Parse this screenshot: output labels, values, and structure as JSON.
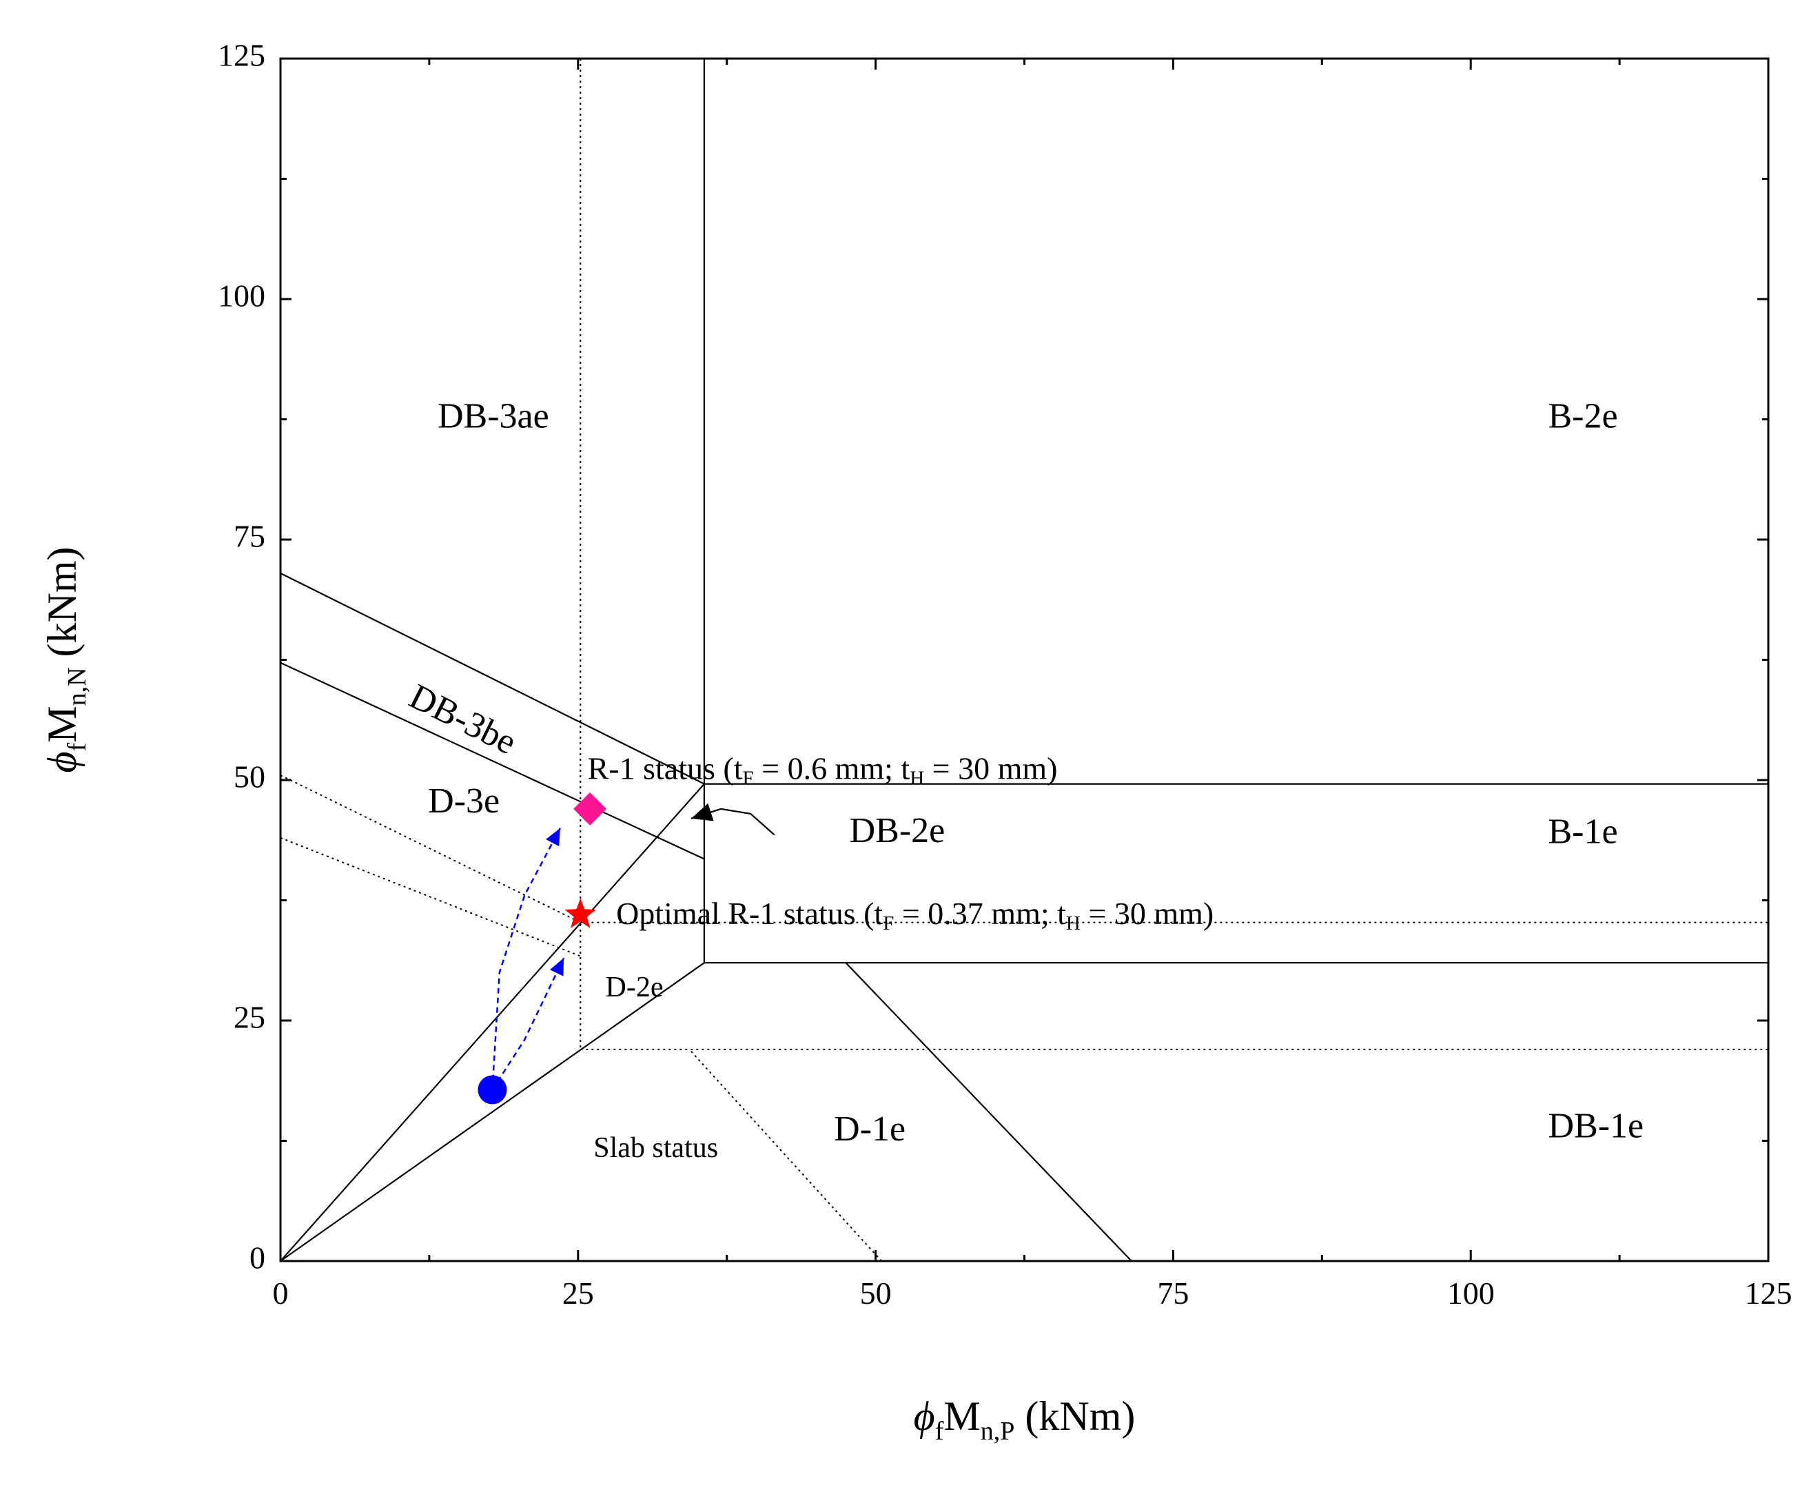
{
  "chart_data": {
    "type": "scatter",
    "xlabel": {
      "prefix": "ϕ",
      "sub1": "f",
      "main": "M",
      "sub2": "n,P",
      "suffix": " (kNm)"
    },
    "ylabel": {
      "prefix": "ϕ",
      "sub1": "f",
      "main": "M",
      "sub2": "n,N",
      "suffix": " (kNm)"
    },
    "xlim": [
      0,
      125
    ],
    "ylim": [
      0,
      125
    ],
    "xticks": [
      0,
      25,
      50,
      75,
      100,
      125
    ],
    "yticks": [
      0,
      25,
      50,
      75,
      100,
      125
    ],
    "xtick_labels": [
      "0",
      "25",
      "50",
      "75",
      "100",
      "125"
    ],
    "ytick_labels": [
      "0",
      "25",
      "50",
      "75",
      "100",
      "125"
    ],
    "minor_step": 12.5,
    "grid": false,
    "boundaries_solid": [
      {
        "name": "boundary-diag-upper",
        "points": [
          [
            0,
            0
          ],
          [
            35.6,
            49.6
          ]
        ]
      },
      {
        "name": "boundary-diag-lower",
        "points": [
          [
            0,
            0
          ],
          [
            35.6,
            31
          ]
        ]
      },
      {
        "name": "boundary-vertical",
        "points": [
          [
            35.6,
            125
          ],
          [
            35.6,
            31
          ]
        ]
      },
      {
        "name": "boundary-horizontal-top",
        "points": [
          [
            35.6,
            49.6
          ],
          [
            125,
            49.6
          ]
        ]
      },
      {
        "name": "boundary-horizontal-bottom",
        "points": [
          [
            35.6,
            31
          ],
          [
            125,
            31
          ]
        ]
      },
      {
        "name": "boundary-diag-db1e",
        "points": [
          [
            47.5,
            31
          ],
          [
            71.5,
            0
          ]
        ]
      },
      {
        "name": "boundary-db3-top",
        "points": [
          [
            0,
            71.5
          ],
          [
            35.6,
            49.6
          ]
        ]
      },
      {
        "name": "boundary-db3-bottom",
        "points": [
          [
            0,
            62.2
          ],
          [
            35.6,
            41.8
          ]
        ]
      }
    ],
    "boundaries_dotted": [
      {
        "name": "dotted-vertical-25",
        "points": [
          [
            25.2,
            125
          ],
          [
            25.2,
            22
          ]
        ]
      },
      {
        "name": "dotted-horizontal-22",
        "points": [
          [
            25.2,
            22
          ],
          [
            125,
            22
          ]
        ]
      },
      {
        "name": "dotted-horizontal-35",
        "points": [
          [
            25.2,
            35.2
          ],
          [
            125,
            35.2
          ]
        ]
      },
      {
        "name": "dotted-d3e-top",
        "points": [
          [
            0,
            50.5
          ],
          [
            25.2,
            35.2
          ]
        ]
      },
      {
        "name": "dotted-d3e-bottom",
        "points": [
          [
            0,
            44
          ],
          [
            25.2,
            31.7
          ]
        ]
      },
      {
        "name": "dotted-d1e",
        "points": [
          [
            34.5,
            21.8
          ],
          [
            50.5,
            0
          ]
        ]
      }
    ],
    "markers": [
      {
        "name": "slab-status-marker",
        "shape": "circle",
        "x": 17.8,
        "y": 17.8,
        "color": "#0000ff"
      },
      {
        "name": "optimal-r1-marker",
        "shape": "star",
        "x": 25.2,
        "y": 36,
        "color": "#ff0000"
      },
      {
        "name": "r1-status-marker",
        "shape": "diamond",
        "x": 26,
        "y": 47,
        "color": "#ff1493"
      }
    ],
    "trajectories": [
      {
        "name": "path-slab-to-r1",
        "color": "#0000ff",
        "points": [
          [
            17.8,
            17.8
          ],
          [
            18.4,
            30
          ],
          [
            20.5,
            38
          ],
          [
            23.5,
            45
          ]
        ]
      },
      {
        "name": "path-slab-to-optimal",
        "color": "#0000ff",
        "points": [
          [
            17.8,
            17.8
          ],
          [
            20.5,
            23
          ],
          [
            23.8,
            31.5
          ]
        ]
      }
    ],
    "annotation_arrow": {
      "name": "db2e-pointer",
      "color": "#000000",
      "points": [
        [
          41.5,
          44.3
        ],
        [
          39.5,
          46.5
        ],
        [
          37,
          47
        ],
        [
          34.5,
          46
        ]
      ]
    },
    "region_labels": [
      {
        "name": "label-db-3ae",
        "text": "DB-3ae",
        "x": 13.2,
        "y": 87.5,
        "size": 52,
        "rotate": false
      },
      {
        "name": "label-b-2e",
        "text": "B-2e",
        "x": 106.5,
        "y": 87.5,
        "size": 52,
        "rotate": false
      },
      {
        "name": "label-db-3be",
        "text": "DB-3be",
        "x": 15.2,
        "y": 56,
        "size": 52,
        "rotate": true
      },
      {
        "name": "label-d-3e",
        "text": "D-3e",
        "x": 12.4,
        "y": 47.5,
        "size": 52,
        "rotate": false
      },
      {
        "name": "label-db-2e",
        "text": "DB-2e",
        "x": 47.8,
        "y": 44.4,
        "size": 52,
        "rotate": false
      },
      {
        "name": "label-b-1e",
        "text": "B-1e",
        "x": 106.5,
        "y": 44.3,
        "size": 52,
        "rotate": false
      },
      {
        "name": "label-d-2e",
        "text": "D-2e",
        "x": 27.3,
        "y": 28.2,
        "size": 42,
        "rotate": false
      },
      {
        "name": "label-d-1e",
        "text": "D-1e",
        "x": 46.5,
        "y": 13.4,
        "size": 52,
        "rotate": false
      },
      {
        "name": "label-db-1e",
        "text": "DB-1e",
        "x": 106.5,
        "y": 13.7,
        "size": 52,
        "rotate": false
      },
      {
        "name": "label-slab-status",
        "text": "Slab status",
        "x": 26.3,
        "y": 11.5,
        "size": 42,
        "rotate": false
      }
    ],
    "annotations": [
      {
        "name": "r1-status-label",
        "x": 25.8,
        "y": 50.9,
        "size": 46,
        "parts": [
          {
            "text": "R-1 status (t",
            "sub": false
          },
          {
            "text": "F",
            "sub": true
          },
          {
            "text": " = 0.6 mm; t",
            "sub": false
          },
          {
            "text": "H",
            "sub": true
          },
          {
            "text": " = 30 mm)",
            "sub": false
          }
        ]
      },
      {
        "name": "optimal-r1-label",
        "x": 28.2,
        "y": 35.8,
        "size": 46,
        "parts": [
          {
            "text": "Optimal R-1 status (t",
            "sub": false
          },
          {
            "text": "F",
            "sub": true
          },
          {
            "text": " = 0.37 mm; t",
            "sub": false
          },
          {
            "text": "H",
            "sub": true
          },
          {
            "text": " = 30 mm)",
            "sub": false
          }
        ]
      }
    ]
  }
}
